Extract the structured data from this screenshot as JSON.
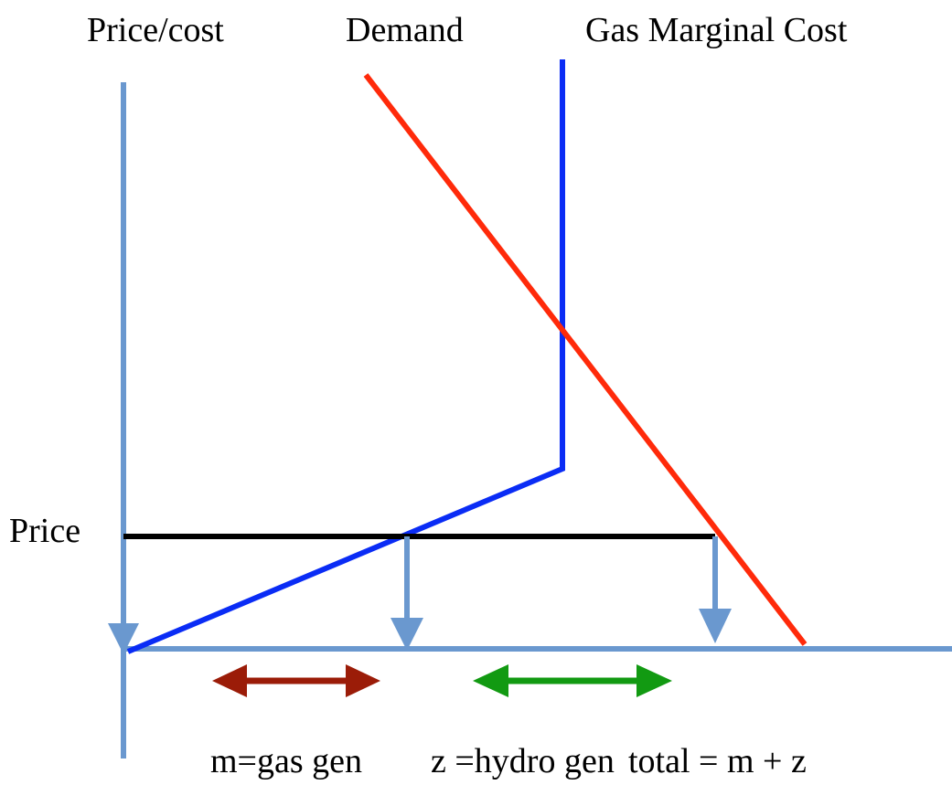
{
  "labels": {
    "price_cost": "Price/cost",
    "demand": "Demand",
    "gas_marginal_cost": "Gas Marginal Cost",
    "price": "Price",
    "m": "m=gas gen",
    "z": "z =hydro gen",
    "total": "total = m + z"
  }
}
